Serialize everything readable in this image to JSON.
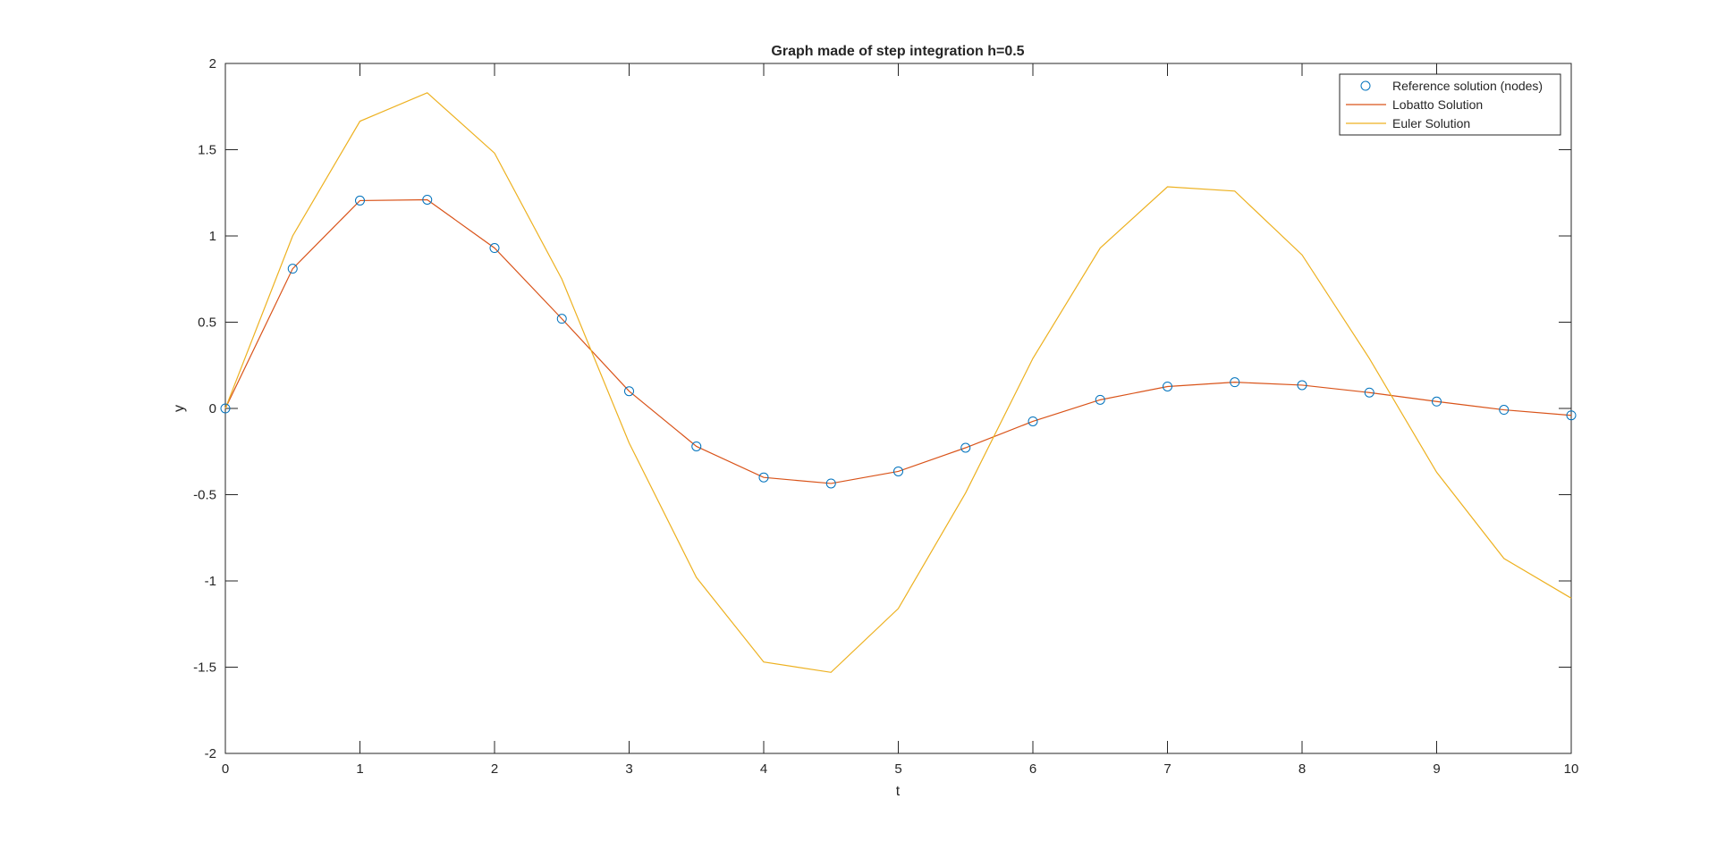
{
  "chart_data": {
    "type": "line",
    "title": "Graph made of step integration h=0.5",
    "xlabel": "t",
    "ylabel": "y",
    "xlim": [
      0,
      10
    ],
    "ylim": [
      -2,
      2
    ],
    "xticks": [
      "0",
      "1",
      "2",
      "3",
      "4",
      "5",
      "6",
      "7",
      "8",
      "9",
      "10"
    ],
    "yticks": [
      "2",
      "1.5",
      "1",
      "0.5",
      "0",
      "-0.5",
      "-1",
      "-1.5",
      "-2"
    ],
    "grid": false,
    "legend_position": "top-right",
    "x": [
      0,
      0.5,
      1,
      1.5,
      2,
      2.5,
      3,
      3.5,
      4,
      4.5,
      5,
      5.5,
      6,
      6.5,
      7,
      7.5,
      8,
      8.5,
      9,
      9.5,
      10
    ],
    "series": [
      {
        "name": "Reference solution (nodes)",
        "style": "markers",
        "color": "#0072BD",
        "values": [
          0,
          0.81,
          1.205,
          1.21,
          0.93,
          0.52,
          0.1,
          -0.22,
          -0.4,
          -0.435,
          -0.365,
          -0.228,
          -0.075,
          0.05,
          0.127,
          0.152,
          0.135,
          0.092,
          0.04,
          -0.008,
          -0.04
        ]
      },
      {
        "name": "Lobatto Solution",
        "style": "line",
        "color": "#D95319",
        "values": [
          0,
          0.81,
          1.205,
          1.21,
          0.93,
          0.52,
          0.1,
          -0.22,
          -0.4,
          -0.435,
          -0.365,
          -0.228,
          -0.075,
          0.05,
          0.127,
          0.152,
          0.135,
          0.092,
          0.04,
          -0.008,
          -0.04
        ]
      },
      {
        "name": "Euler Solution",
        "style": "line",
        "color": "#EDB120",
        "values": [
          0,
          1.0,
          1.665,
          1.83,
          1.48,
          0.75,
          -0.2,
          -0.98,
          -1.47,
          -1.53,
          -1.16,
          -0.49,
          0.29,
          0.93,
          1.285,
          1.26,
          0.89,
          0.29,
          -0.37,
          -0.87,
          -1.1
        ]
      }
    ]
  }
}
